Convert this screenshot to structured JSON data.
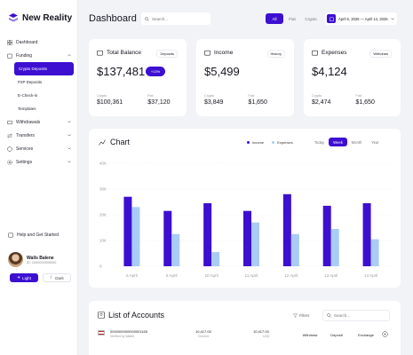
{
  "app": {
    "name": "New Reality"
  },
  "colors": {
    "accent": "#3d0fd1",
    "income": "#3d0fd1",
    "expenses": "#a8ccf5",
    "background": "#f2f3f7"
  },
  "sidebar": {
    "items": [
      {
        "label": "Dashboard",
        "icon": "grid-icon"
      },
      {
        "label": "Funding",
        "icon": "wallet-icon",
        "expanded": true
      },
      {
        "label": "Crypto Deposits",
        "active": true
      },
      {
        "label": "P2P Deposits"
      },
      {
        "label": "E-Check-in"
      },
      {
        "label": "Templates"
      },
      {
        "label": "Withdrawals",
        "icon": "withdraw-icon"
      },
      {
        "label": "Transfers",
        "icon": "transfer-icon"
      },
      {
        "label": "Services",
        "icon": "services-icon"
      },
      {
        "label": "Settings",
        "icon": "gear-icon"
      }
    ],
    "help": "Help and Get Started",
    "user": {
      "name": "Walls Balene",
      "id": "ID: 1000000000000"
    },
    "theme": {
      "light": "Light",
      "dark": "Dark"
    }
  },
  "header": {
    "title": "Dashboard",
    "search_placeholder": "Search...",
    "segments": [
      "All",
      "Fiat",
      "Crypto"
    ],
    "date_range": "April 6, 2025 — April 14, 2025"
  },
  "cards": [
    {
      "title": "Total Balance",
      "icon": "wallet-icon",
      "action": "Deposits",
      "value": "$137,481",
      "badge": "+13%",
      "m1_label": "Crypto",
      "m1_value": "$100,361",
      "m2_label": "Fiat",
      "m2_value": "$37,120"
    },
    {
      "title": "Income",
      "icon": "income-icon",
      "action": "History",
      "value": "$5,499",
      "m1_label": "Crypto",
      "m1_value": "$3,849",
      "m2_label": "Fiat",
      "m2_value": "$1,650"
    },
    {
      "title": "Expenses",
      "icon": "expenses-icon",
      "action": "Withdraw",
      "value": "$4,124",
      "m1_label": "Crypto",
      "m1_value": "$2,474",
      "m2_label": "Fiat",
      "m2_value": "$1,650"
    }
  ],
  "chart": {
    "title": "Chart",
    "legend": [
      "Income",
      "Expenses"
    ],
    "periods": [
      "Today",
      "Week",
      "Month",
      "Year"
    ],
    "active_period": "Week"
  },
  "chart_data": {
    "type": "bar",
    "categories": [
      "6 April",
      "8 April",
      "10 April",
      "11 April",
      "12 April",
      "13 April",
      "14 April"
    ],
    "series": [
      {
        "name": "Income",
        "values": [
          27,
          21.5,
          24.5,
          21.5,
          28,
          23.5,
          24.5
        ]
      },
      {
        "name": "Expenses",
        "values": [
          23,
          12.5,
          5.5,
          17,
          12.5,
          14.5,
          10.5
        ]
      }
    ],
    "yticks": [
      "0",
      "10K",
      "20K",
      "30K",
      "40K"
    ],
    "ylim": [
      0,
      40
    ],
    "grid": true,
    "legend_position": "top-right"
  },
  "accounts": {
    "title": "List of Accounts",
    "filters": "Filters",
    "search_placeholder": "Search...",
    "rows": [
      {
        "number": "0000000000000001165",
        "sub": "Verified by Wallet",
        "amount": "10,417.00",
        "amount_sub": "Current",
        "amount2": "10,417.00",
        "currency": "USD",
        "buttons": [
          "Withdraw",
          "Deposit",
          "Exchange"
        ]
      }
    ]
  }
}
